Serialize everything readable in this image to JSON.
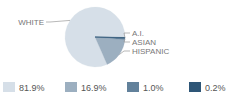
{
  "chart_data": {
    "type": "pie",
    "categories": [
      "WHITE",
      "HISPANIC",
      "ASIAN",
      "A.I."
    ],
    "values": [
      81.9,
      16.9,
      1.0,
      0.2
    ],
    "value_labels": [
      "81.9%",
      "16.9%",
      "1.0%",
      "0.2%"
    ],
    "colors": [
      "#d6dfe8",
      "#9cafc0",
      "#62819b",
      "#2e5677"
    ],
    "legend": "bottom"
  }
}
